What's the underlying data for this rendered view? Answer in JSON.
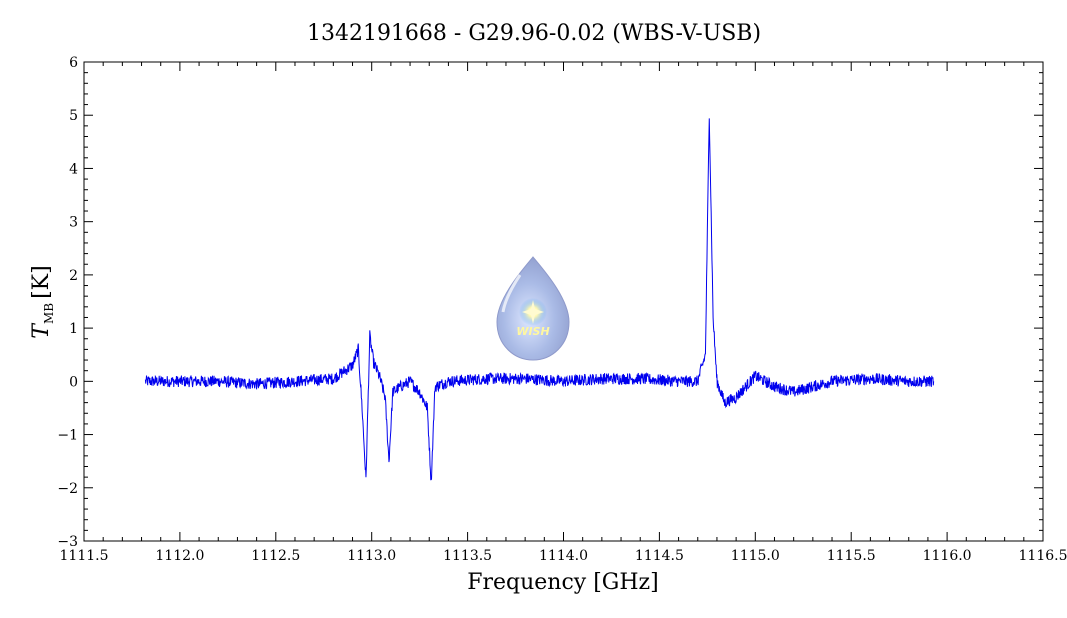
{
  "chart_data": {
    "type": "line",
    "title": "1342191668 - G29.96-0.02 (WBS-V-USB)",
    "xlabel": "Frequency [GHz]",
    "ylabel_main": "T",
    "ylabel_sub": "MB",
    "ylabel_unit": "[K]",
    "xlim": [
      1111.5,
      1116.5
    ],
    "ylim": [
      -3,
      6
    ],
    "x_ticks": [
      1111.5,
      1112.0,
      1112.5,
      1113.0,
      1113.5,
      1114.0,
      1114.5,
      1115.0,
      1115.5,
      1116.0,
      1116.5
    ],
    "x_tick_labels": [
      "1111.5",
      "1112.0",
      "1112.5",
      "1113.0",
      "1113.5",
      "1114.0",
      "1114.5",
      "1115.0",
      "1115.5",
      "1116.0",
      "1116.5"
    ],
    "y_ticks": [
      -3,
      -2,
      -1,
      0,
      1,
      2,
      3,
      4,
      5,
      6
    ],
    "y_tick_labels": [
      "−3",
      "−2",
      "−1",
      "0",
      "1",
      "2",
      "3",
      "4",
      "5",
      "6"
    ],
    "grid": false,
    "line_color": "#0000ee",
    "series": [
      {
        "x": [
          1111.82,
          1112.0,
          1112.2,
          1112.4,
          1112.6,
          1112.8,
          1112.9,
          1112.93,
          1112.95,
          1112.97,
          1112.99,
          1113.01,
          1113.04,
          1113.07,
          1113.09,
          1113.11,
          1113.15,
          1113.2,
          1113.25,
          1113.29,
          1113.31,
          1113.33,
          1113.4,
          1113.6,
          1113.8,
          1114.0,
          1114.2,
          1114.4,
          1114.6,
          1114.7,
          1114.74,
          1114.76,
          1114.78,
          1114.8,
          1114.84,
          1114.9,
          1115.0,
          1115.1,
          1115.2,
          1115.4,
          1115.6,
          1115.8,
          1115.93
        ],
        "y": [
          0.0,
          0.0,
          0.0,
          -0.05,
          0.0,
          0.05,
          0.3,
          0.6,
          -0.5,
          -1.85,
          0.85,
          0.35,
          0.1,
          -0.3,
          -1.5,
          -0.2,
          -0.1,
          0.0,
          -0.2,
          -0.5,
          -1.9,
          -0.1,
          0.0,
          0.05,
          0.05,
          0.0,
          0.05,
          0.05,
          0.0,
          0.0,
          0.5,
          5.05,
          1.2,
          0.0,
          -0.4,
          -0.3,
          0.1,
          -0.1,
          -0.2,
          0.0,
          0.05,
          0.0,
          0.0
        ]
      }
    ]
  },
  "logo": {
    "text": "WISH"
  }
}
